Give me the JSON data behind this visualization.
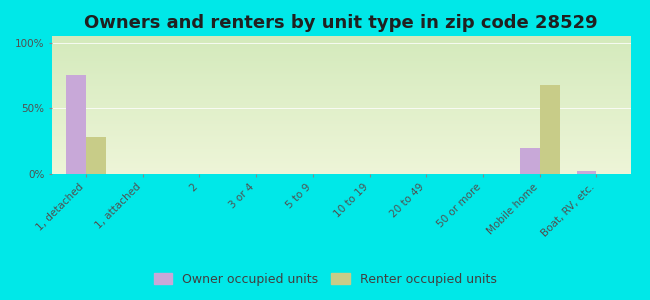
{
  "title": "Owners and renters by unit type in zip code 28529",
  "categories": [
    "1, detached",
    "1, attached",
    "2",
    "3 or 4",
    "5 to 9",
    "10 to 19",
    "20 to 49",
    "50 or more",
    "Mobile home",
    "Boat, RV, etc."
  ],
  "owner_values": [
    75,
    0,
    0,
    0,
    0,
    0,
    0,
    0,
    20,
    2
  ],
  "renter_values": [
    28,
    0,
    0,
    0,
    0,
    0,
    0,
    0,
    68,
    0
  ],
  "owner_color": "#c8a8d8",
  "renter_color": "#c8cc88",
  "background_color": "#00e8e8",
  "plot_bg_colors": [
    "#eef5d8",
    "#d4eabc"
  ],
  "ylabel_ticks": [
    "0%",
    "50%",
    "100%"
  ],
  "ytick_vals": [
    0,
    50,
    100
  ],
  "ylim": [
    0,
    105
  ],
  "bar_width": 0.35,
  "title_fontsize": 13,
  "tick_fontsize": 7.5,
  "legend_fontsize": 9,
  "n_categories": 10
}
